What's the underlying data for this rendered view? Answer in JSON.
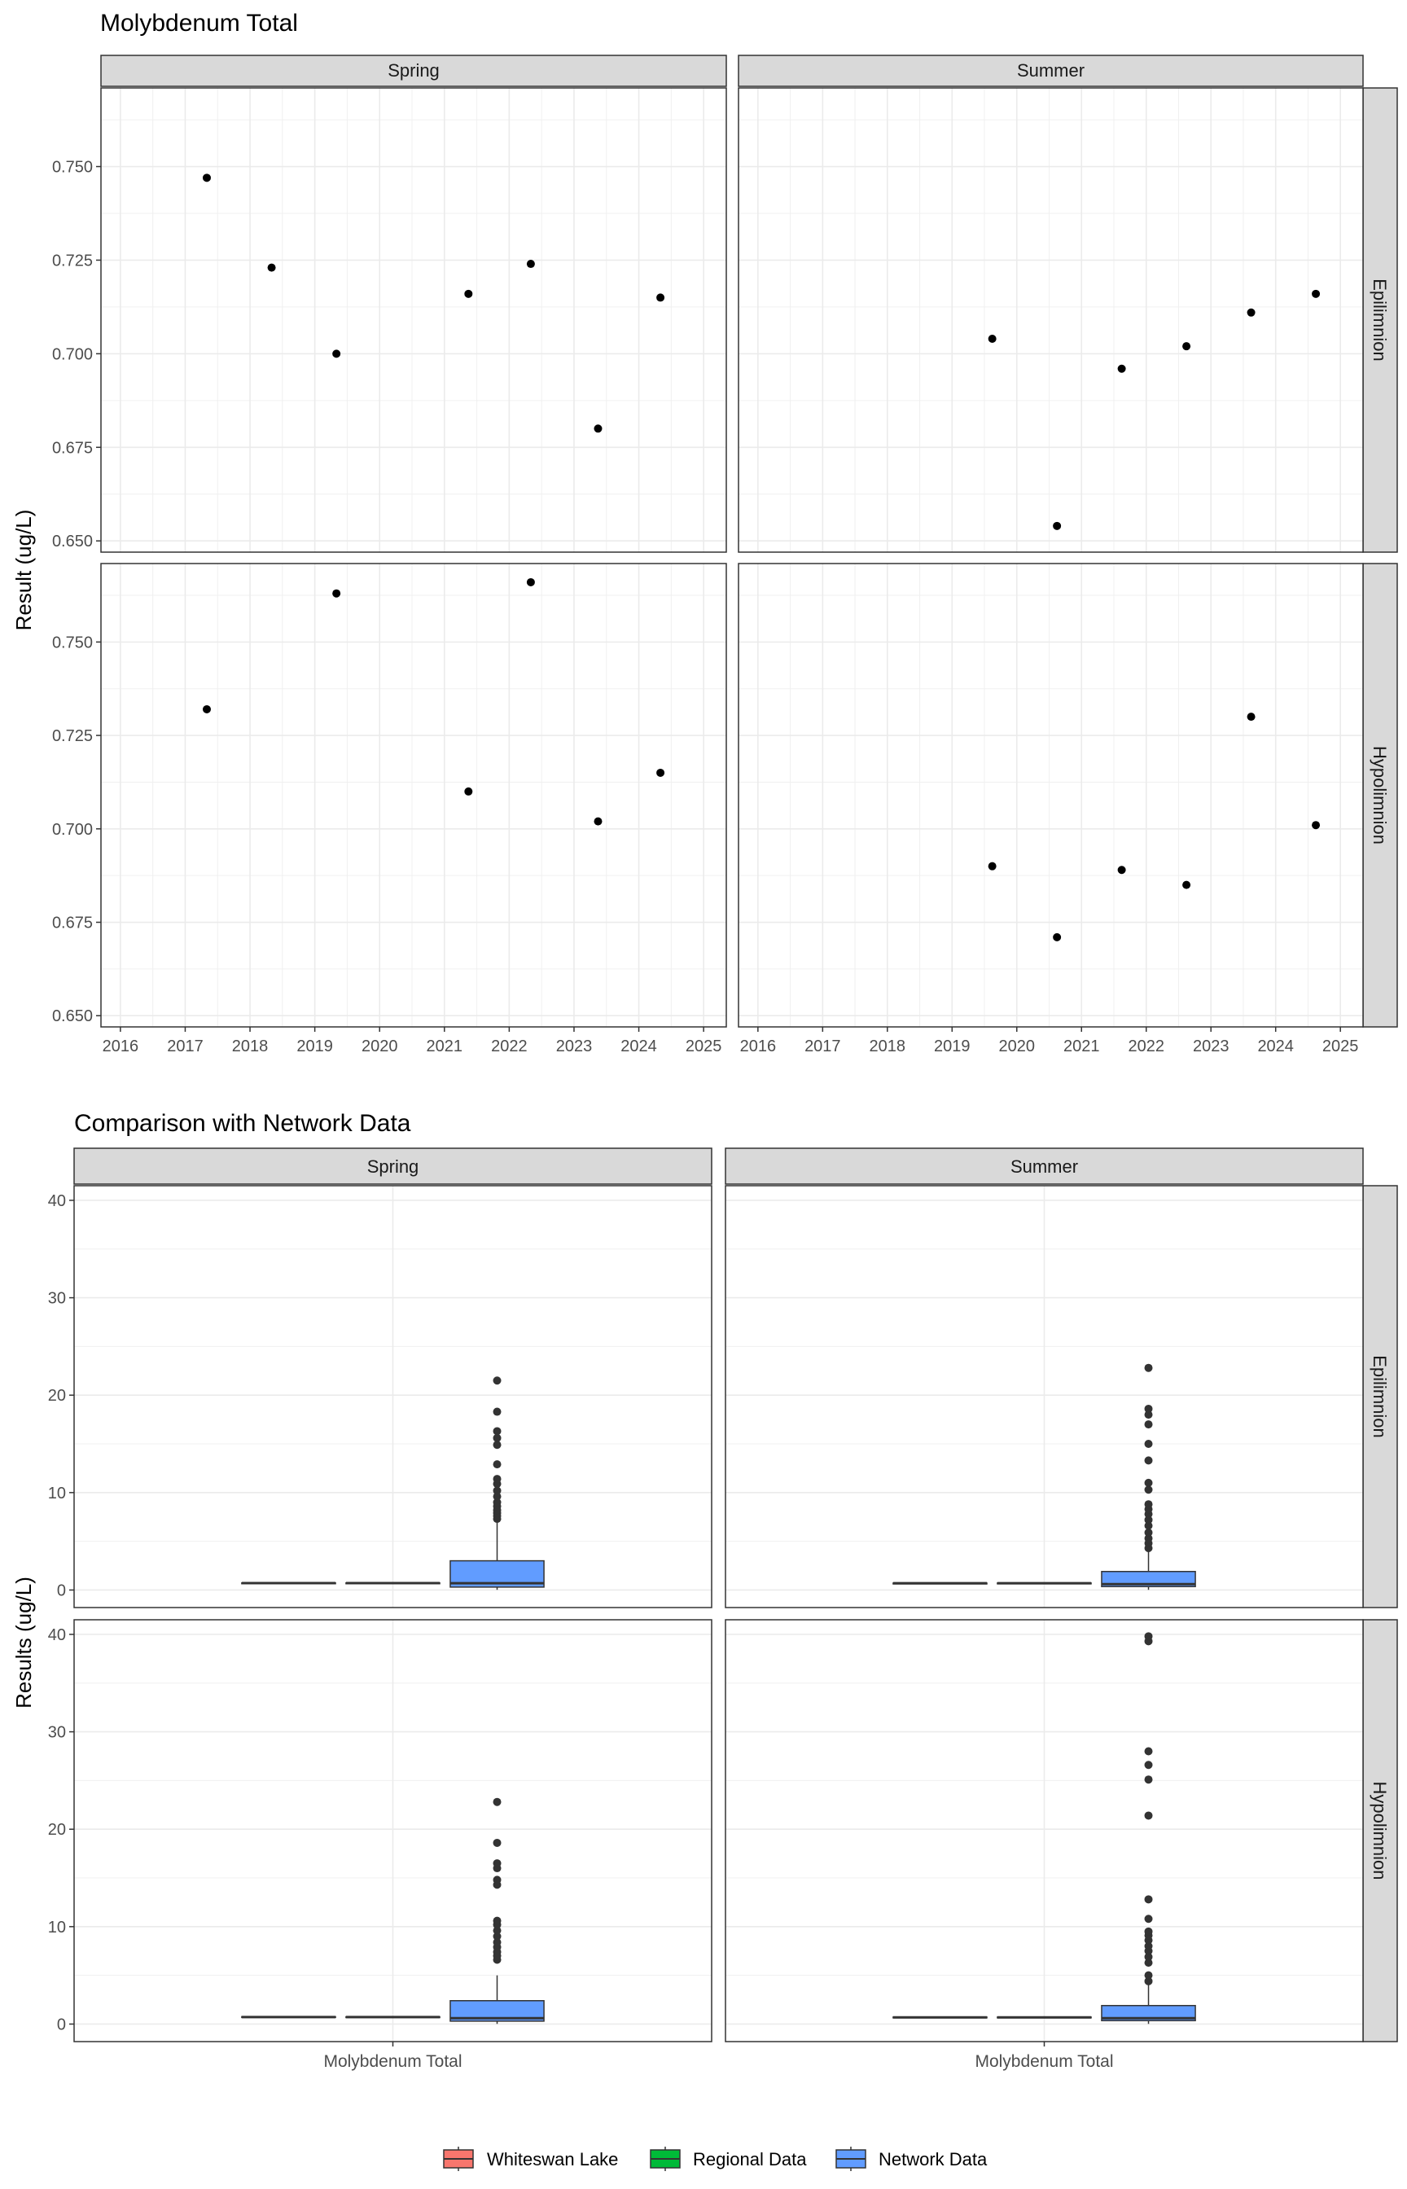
{
  "chart_data": [
    {
      "type": "scatter",
      "title": "Molybdenum Total",
      "ylabel": "Result (ug/L)",
      "xlabel": "",
      "columns": [
        "Spring",
        "Summer"
      ],
      "rows": [
        "Epilimnion",
        "Hypolimnion"
      ],
      "x_ticks": [
        "2016",
        "2017",
        "2018",
        "2019",
        "2020",
        "2021",
        "2022",
        "2023",
        "2024",
        "2025"
      ],
      "xlim": [
        2015.7,
        2025.35
      ],
      "y_ticks": [
        "0.650",
        "0.675",
        "0.700",
        "0.725",
        "0.750"
      ],
      "ylim": [
        0.647,
        0.771
      ],
      "grid": true,
      "panels": [
        {
          "column": "Spring",
          "row": "Epilimnion",
          "x": [
            "2017-05-01",
            "2018-05-01",
            "2019-05-01",
            "2021-05-15",
            "2022-05-01",
            "2023-05-15",
            "2024-05-01"
          ],
          "y": [
            0.747,
            0.723,
            0.7,
            0.716,
            0.724,
            0.68,
            0.715
          ]
        },
        {
          "column": "Summer",
          "row": "Epilimnion",
          "x": [
            "2019-08-15",
            "2020-08-15",
            "2021-08-15",
            "2022-08-15",
            "2023-08-15",
            "2024-08-15"
          ],
          "y": [
            0.704,
            0.654,
            0.696,
            0.702,
            0.711,
            0.716
          ]
        },
        {
          "column": "Spring",
          "row": "Hypolimnion",
          "x": [
            "2017-05-01",
            "2019-05-01",
            "2021-05-15",
            "2022-05-01",
            "2023-05-15",
            "2024-05-01"
          ],
          "y": [
            0.732,
            0.763,
            0.71,
            0.766,
            0.702,
            0.715
          ]
        },
        {
          "column": "Summer",
          "row": "Hypolimnion",
          "x": [
            "2019-08-15",
            "2020-08-15",
            "2021-08-15",
            "2022-08-15",
            "2023-08-15",
            "2024-08-15"
          ],
          "y": [
            0.69,
            0.671,
            0.689,
            0.685,
            0.73,
            0.701
          ]
        }
      ]
    },
    {
      "type": "box",
      "title": "Comparison with Network Data",
      "ylabel": "Results (ug/L)",
      "xlabel": "",
      "category": "Molybdenum Total",
      "columns": [
        "Spring",
        "Summer"
      ],
      "rows": [
        "Epilimnion",
        "Hypolimnion"
      ],
      "y_ticks": [
        "0",
        "10",
        "20",
        "30",
        "40"
      ],
      "ylim": [
        -1.8,
        41.5
      ],
      "grid": true,
      "legend": {
        "position": "bottom",
        "entries": [
          {
            "name": "Whiteswan Lake",
            "color": "#F8766D"
          },
          {
            "name": "Regional Data",
            "color": "#00BA38"
          },
          {
            "name": "Network Data",
            "color": "#619CFF"
          }
        ]
      },
      "panels": [
        {
          "column": "Spring",
          "row": "Epilimnion",
          "boxes": [
            {
              "group": "Whiteswan Lake",
              "q1": 0.69,
              "median": 0.71,
              "q3": 0.73,
              "wlow": 0.68,
              "whigh": 0.75,
              "outliers": []
            },
            {
              "group": "Regional Data",
              "q1": 0.68,
              "median": 0.71,
              "q3": 0.73,
              "wlow": 0.66,
              "whigh": 0.76,
              "outliers": []
            },
            {
              "group": "Network Data",
              "q1": 0.3,
              "median": 0.7,
              "q3": 3.0,
              "wlow": 0.02,
              "whigh": 7.0,
              "outliers": [
                7.3,
                7.6,
                7.9,
                8.2,
                8.6,
                9.0,
                9.6,
                10.2,
                10.9,
                11.4,
                12.9,
                14.9,
                15.6,
                16.3,
                18.3,
                21.5
              ]
            }
          ]
        },
        {
          "column": "Summer",
          "row": "Epilimnion",
          "boxes": [
            {
              "group": "Whiteswan Lake",
              "q1": 0.69,
              "median": 0.7,
              "q3": 0.71,
              "wlow": 0.65,
              "whigh": 0.72,
              "outliers": []
            },
            {
              "group": "Regional Data",
              "q1": 0.68,
              "median": 0.7,
              "q3": 0.72,
              "wlow": 0.65,
              "whigh": 0.74,
              "outliers": []
            },
            {
              "group": "Network Data",
              "q1": 0.35,
              "median": 0.6,
              "q3": 1.9,
              "wlow": 0.02,
              "whigh": 4.0,
              "outliers": [
                4.3,
                4.8,
                5.3,
                5.9,
                6.6,
                7.2,
                7.8,
                8.3,
                8.8,
                10.3,
                11.0,
                13.3,
                15.0,
                17.0,
                18.0,
                18.6,
                22.8
              ]
            }
          ]
        },
        {
          "column": "Spring",
          "row": "Hypolimnion",
          "boxes": [
            {
              "group": "Whiteswan Lake",
              "q1": 0.7,
              "median": 0.72,
              "q3": 0.76,
              "wlow": 0.7,
              "whigh": 0.77,
              "outliers": []
            },
            {
              "group": "Regional Data",
              "q1": 0.69,
              "median": 0.72,
              "q3": 0.75,
              "wlow": 0.67,
              "whigh": 0.77,
              "outliers": []
            },
            {
              "group": "Network Data",
              "q1": 0.3,
              "median": 0.6,
              "q3": 2.4,
              "wlow": 0.02,
              "whigh": 5.0,
              "outliers": [
                6.6,
                7.0,
                7.4,
                7.9,
                8.4,
                9.0,
                9.6,
                10.2,
                10.6,
                14.3,
                14.8,
                16.0,
                16.5,
                18.6,
                22.8
              ]
            }
          ]
        },
        {
          "column": "Summer",
          "row": "Hypolimnion",
          "boxes": [
            {
              "group": "Whiteswan Lake",
              "q1": 0.68,
              "median": 0.69,
              "q3": 0.72,
              "wlow": 0.67,
              "whigh": 0.73,
              "outliers": []
            },
            {
              "group": "Regional Data",
              "q1": 0.67,
              "median": 0.69,
              "q3": 0.72,
              "wlow": 0.65,
              "whigh": 0.74,
              "outliers": []
            },
            {
              "group": "Network Data",
              "q1": 0.35,
              "median": 0.6,
              "q3": 1.9,
              "wlow": 0.02,
              "whigh": 4.2,
              "outliers": [
                4.4,
                5.0,
                6.3,
                6.9,
                7.5,
                8.0,
                8.6,
                9.1,
                9.5,
                10.8,
                12.8,
                21.4,
                25.1,
                26.6,
                28.0,
                39.3,
                39.8
              ]
            }
          ]
        }
      ]
    }
  ]
}
